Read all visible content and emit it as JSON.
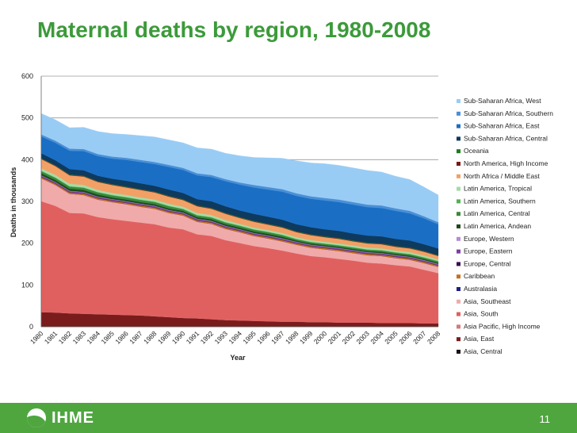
{
  "slide": {
    "title": "Maternal deaths by region, 1980-2008",
    "logo_text": "IHME",
    "page_number": "11",
    "footer_color": "#4fa63f",
    "title_color": "#3c9a3a"
  },
  "chart_data": {
    "type": "area",
    "stacked": true,
    "ylabel": "Deaths in thousands",
    "xlabel": "Year",
    "ylim": [
      0,
      600
    ],
    "yticks": [
      "0",
      "100",
      "200",
      "300",
      "400",
      "500",
      "600"
    ],
    "grid": true,
    "legend_position": "right",
    "x": [
      "1980",
      "1981",
      "1982",
      "1983",
      "1984",
      "1985",
      "1986",
      "1987",
      "1988",
      "1989",
      "1990",
      "1991",
      "1992",
      "1993",
      "1994",
      "1995",
      "1996",
      "1997",
      "1998",
      "1999",
      "2000",
      "2001",
      "2002",
      "2003",
      "2004",
      "2005",
      "2006",
      "2007",
      "2008"
    ],
    "series": [
      {
        "name": "Asia, Central",
        "color": "#1a0f0f",
        "values": [
          1,
          1,
          1,
          1,
          1,
          1,
          1,
          1,
          1,
          1,
          1,
          1,
          1,
          1,
          1,
          1,
          1,
          1,
          1,
          1,
          1,
          1,
          1,
          1,
          1,
          1,
          1,
          1,
          1
        ]
      },
      {
        "name": "Asia, East",
        "color": "#7b1c1c",
        "values": [
          34,
          33,
          31,
          30,
          29,
          28,
          27,
          26,
          24,
          22,
          20,
          19,
          17,
          15,
          14,
          13,
          12,
          11,
          11,
          10,
          10,
          9,
          9,
          9,
          8,
          8,
          8,
          7,
          7
        ]
      },
      {
        "name": "Asia Pacific, High Income",
        "color": "#d47a7a",
        "values": [
          0.4,
          0.4,
          0.4,
          0.4,
          0.4,
          0.4,
          0.4,
          0.4,
          0.4,
          0.4,
          0.3,
          0.3,
          0.3,
          0.3,
          0.3,
          0.3,
          0.3,
          0.3,
          0.3,
          0.3,
          0.3,
          0.3,
          0.3,
          0.3,
          0.3,
          0.3,
          0.3,
          0.3,
          0.3
        ]
      },
      {
        "name": "Asia, South",
        "color": "#e06060",
        "values": [
          265,
          255,
          240,
          240,
          232,
          228,
          225,
          222,
          220,
          214,
          212,
          201,
          199,
          191,
          185,
          179,
          175,
          170,
          163,
          158,
          155,
          152,
          148,
          143,
          142,
          138,
          135,
          128,
          120
        ]
      },
      {
        "name": "Asia, Southeast",
        "color": "#f0aaaa",
        "values": [
          55,
          50,
          46,
          44,
          42,
          41,
          40,
          38,
          37,
          35,
          33,
          30,
          29,
          27,
          26,
          24,
          23,
          22,
          21,
          20,
          19,
          19,
          18,
          18,
          18,
          17,
          16,
          16,
          15
        ]
      },
      {
        "name": "Australasia",
        "color": "#1f1f8a",
        "values": [
          0.1,
          0.1,
          0.1,
          0.1,
          0.1,
          0.1,
          0.1,
          0.1,
          0.1,
          0.1,
          0.1,
          0.1,
          0.1,
          0.1,
          0.1,
          0.1,
          0.1,
          0.1,
          0.1,
          0.1,
          0.1,
          0.1,
          0.1,
          0.1,
          0.1,
          0.1,
          0.1,
          0.1,
          0.1
        ]
      },
      {
        "name": "Caribbean",
        "color": "#c8701e",
        "values": [
          3,
          3,
          3,
          3,
          3,
          3,
          3,
          3,
          3,
          3,
          3,
          3,
          3,
          3,
          3,
          3,
          3,
          3,
          3,
          3,
          3,
          3,
          3,
          3,
          3,
          3,
          3,
          3,
          3
        ]
      },
      {
        "name": "Europe, Central",
        "color": "#3a1050",
        "values": [
          1,
          1,
          1,
          1,
          1,
          1,
          1,
          1,
          1,
          1,
          1,
          1,
          1,
          1,
          1,
          1,
          1,
          1,
          1,
          1,
          1,
          1,
          1,
          1,
          1,
          1,
          1,
          1,
          1
        ]
      },
      {
        "name": "Europe, Eastern",
        "color": "#7a3fa0",
        "values": [
          2,
          2,
          2,
          2,
          2,
          2,
          2,
          2,
          2,
          2,
          2,
          2,
          2,
          2,
          2,
          2,
          2,
          2,
          2,
          2,
          2,
          2,
          2,
          2,
          2,
          2,
          2,
          2,
          2
        ]
      },
      {
        "name": "Europe, Western",
        "color": "#b58ad6",
        "values": [
          1,
          1,
          1,
          1,
          1,
          1,
          1,
          1,
          1,
          1,
          1,
          1,
          1,
          1,
          1,
          1,
          1,
          1,
          1,
          1,
          1,
          1,
          1,
          1,
          1,
          1,
          1,
          1,
          1
        ]
      },
      {
        "name": "Latin America, Andean",
        "color": "#1f4a1f",
        "values": [
          5,
          5,
          5,
          5,
          5,
          4,
          4,
          4,
          4,
          4,
          4,
          4,
          4,
          4,
          4,
          4,
          4,
          4,
          3,
          3,
          3,
          3,
          3,
          3,
          3,
          3,
          3,
          3,
          3
        ]
      },
      {
        "name": "Latin America, Central",
        "color": "#3a8a3a",
        "values": [
          5,
          5,
          5,
          5,
          5,
          5,
          5,
          5,
          5,
          5,
          4,
          4,
          4,
          4,
          4,
          4,
          4,
          4,
          3,
          3,
          3,
          3,
          3,
          3,
          3,
          3,
          3,
          3,
          3
        ]
      },
      {
        "name": "Latin America, Southern",
        "color": "#54b054",
        "values": [
          1,
          1,
          1,
          1,
          1,
          1,
          1,
          1,
          1,
          1,
          1,
          1,
          1,
          1,
          1,
          1,
          1,
          1,
          1,
          1,
          1,
          1,
          1,
          1,
          1,
          1,
          1,
          1,
          1
        ]
      },
      {
        "name": "Latin America, Tropical",
        "color": "#a4dca4",
        "values": [
          6,
          6,
          6,
          6,
          5,
          5,
          5,
          5,
          5,
          5,
          5,
          5,
          5,
          5,
          4,
          4,
          4,
          4,
          4,
          4,
          4,
          4,
          4,
          4,
          4,
          4,
          4,
          4,
          4
        ]
      },
      {
        "name": "North Africa / Middle East",
        "color": "#f2a066",
        "values": [
          22,
          21,
          20,
          20,
          19,
          19,
          18,
          18,
          17,
          17,
          16,
          16,
          15,
          15,
          14,
          14,
          13,
          13,
          12,
          12,
          11,
          11,
          10,
          10,
          10,
          9,
          9,
          9,
          8
        ]
      },
      {
        "name": "North America, High Income",
        "color": "#7a1a10",
        "values": [
          1,
          1,
          1,
          1,
          1,
          1,
          1,
          1,
          1,
          1,
          1,
          1,
          1,
          1,
          1,
          1,
          1,
          1,
          1,
          1,
          1,
          1,
          1,
          1,
          1,
          1,
          1,
          1,
          1
        ]
      },
      {
        "name": "Oceania",
        "color": "#1e7a1e",
        "values": [
          1,
          1,
          1,
          1,
          1,
          1,
          1,
          1,
          1,
          1,
          1,
          1,
          1,
          1,
          1,
          1,
          1,
          1,
          1,
          1,
          1,
          1,
          1,
          1,
          1,
          1,
          1,
          1,
          1
        ]
      },
      {
        "name": "Sub-Saharan Africa, Central",
        "color": "#0d3a5e",
        "values": [
          12,
          12,
          13,
          13,
          13,
          13,
          14,
          14,
          14,
          15,
          15,
          15,
          16,
          16,
          16,
          17,
          17,
          17,
          17,
          17,
          17,
          17,
          17,
          17,
          17,
          17,
          17,
          16,
          16
        ]
      },
      {
        "name": "Sub-Saharan Africa, East",
        "color": "#1a6fc4",
        "values": [
          40,
          42,
          44,
          46,
          47,
          48,
          50,
          51,
          52,
          54,
          55,
          57,
          58,
          60,
          62,
          63,
          65,
          67,
          68,
          68,
          69,
          69,
          69,
          68,
          68,
          67,
          65,
          62,
          58
        ]
      },
      {
        "name": "Sub-Saharan Africa, Southern",
        "color": "#4a8fd6",
        "values": [
          5,
          5,
          5,
          5,
          5,
          5,
          5,
          5,
          5,
          5,
          5,
          5,
          5,
          5,
          5,
          6,
          6,
          6,
          6,
          6,
          6,
          6,
          6,
          6,
          6,
          6,
          6,
          5,
          5
        ]
      },
      {
        "name": "Sub-Saharan Africa, West",
        "color": "#99ccf5",
        "values": [
          50,
          50,
          50,
          52,
          54,
          55,
          56,
          58,
          60,
          60,
          60,
          61,
          62,
          62,
          64,
          66,
          70,
          74,
          78,
          80,
          82,
          82,
          82,
          82,
          80,
          77,
          75,
          70,
          65
        ]
      }
    ]
  }
}
